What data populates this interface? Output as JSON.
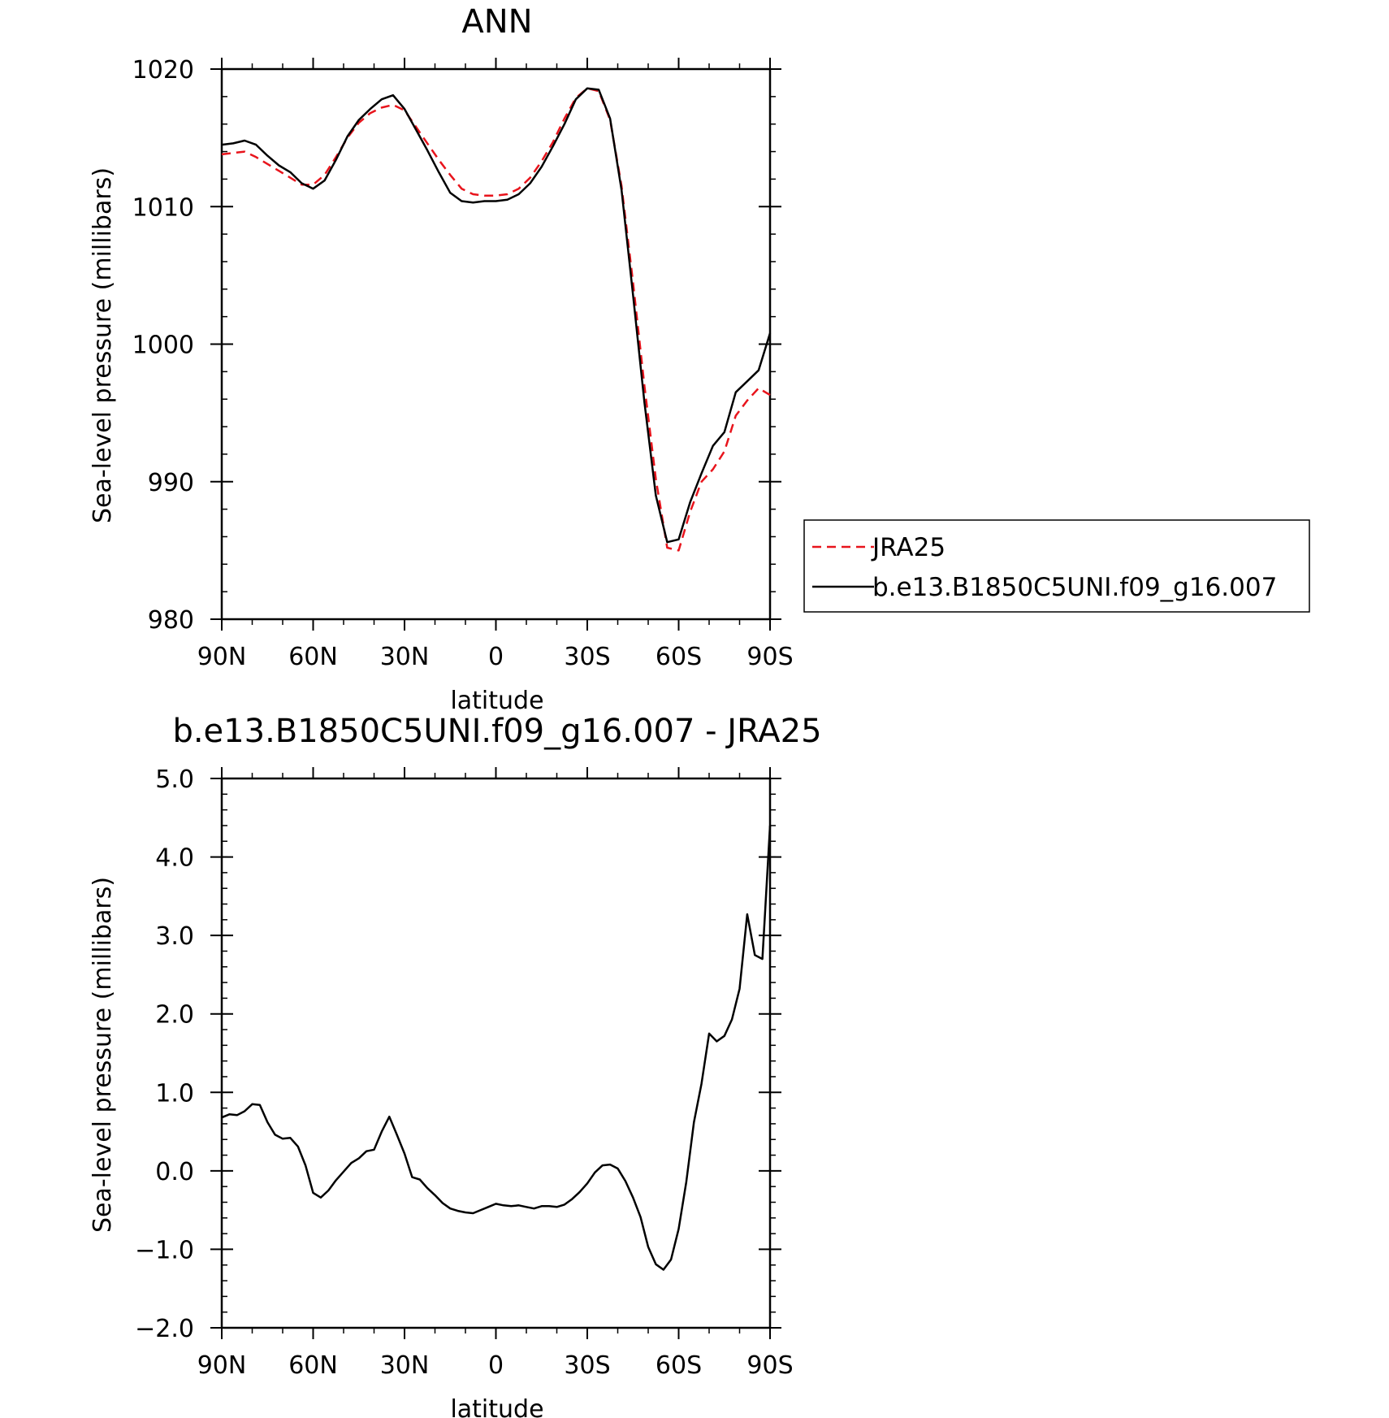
{
  "chart_data": [
    {
      "type": "line",
      "title": "ANN",
      "xlabel": "latitude",
      "ylabel": "Sea-level pressure (millibars)",
      "x_ticks": [
        {
          "value": 90,
          "label": "90N"
        },
        {
          "value": 60,
          "label": "60N"
        },
        {
          "value": 30,
          "label": "30N"
        },
        {
          "value": 0,
          "label": "0"
        },
        {
          "value": -30,
          "label": "30S"
        },
        {
          "value": -60,
          "label": "60S"
        },
        {
          "value": -90,
          "label": "90S"
        }
      ],
      "xlim": [
        90,
        -90
      ],
      "ylim": [
        980,
        1020
      ],
      "y_ticks": [
        {
          "value": 980,
          "label": "980"
        },
        {
          "value": 990,
          "label": "990"
        },
        {
          "value": 1000,
          "label": "1000"
        },
        {
          "value": 1010,
          "label": "1010"
        },
        {
          "value": 1020,
          "label": "1020"
        }
      ],
      "y_minor_step": 2,
      "x_minor_step": 10,
      "grid": false,
      "legend": {
        "placement": "right",
        "entries": [
          "JRA25",
          "b.e13.B1850C5UNI.f09_g16.007"
        ]
      },
      "x": [
        90,
        86.25,
        82.5,
        78.75,
        75,
        71.25,
        67.5,
        63.75,
        60,
        56.25,
        52.5,
        48.75,
        45,
        41.25,
        37.5,
        33.75,
        30,
        26.25,
        22.5,
        18.75,
        15,
        11.25,
        7.5,
        3.75,
        0,
        -3.75,
        -7.5,
        -11.25,
        -15,
        -18.75,
        -22.5,
        -26.25,
        -30,
        -33.75,
        -37.5,
        -41.25,
        -45,
        -48.75,
        -52.5,
        -56.25,
        -60,
        -63.75,
        -67.5,
        -71.25,
        -75,
        -78.75,
        -82.5,
        -86.25,
        -90
      ],
      "series": [
        {
          "name": "JRA25",
          "color": "#e8141c",
          "style": "dashed",
          "values": [
            1013.8,
            1013.9,
            1014.0,
            1013.6,
            1013.1,
            1012.6,
            1012.1,
            1011.6,
            1011.6,
            1012.3,
            1013.6,
            1015.0,
            1016.1,
            1016.8,
            1017.2,
            1017.4,
            1017.0,
            1015.8,
            1014.6,
            1013.4,
            1012.3,
            1011.3,
            1010.9,
            1010.8,
            1010.8,
            1010.9,
            1011.3,
            1012.1,
            1013.3,
            1014.7,
            1016.4,
            1017.9,
            1018.6,
            1018.4,
            1016.3,
            1011.5,
            1004.5,
            997.0,
            990.2,
            985.2,
            985.0,
            987.8,
            990.0,
            990.9,
            992.2,
            994.8,
            995.9,
            996.8,
            996.3
          ]
        },
        {
          "name": "b.e13.B1850C5UNI.f09_g16.007",
          "color": "#000000",
          "style": "solid",
          "values": [
            1014.5,
            1014.6,
            1014.8,
            1014.5,
            1013.7,
            1013.0,
            1012.5,
            1011.7,
            1011.3,
            1011.9,
            1013.4,
            1015.1,
            1016.3,
            1017.1,
            1017.8,
            1018.1,
            1017.1,
            1015.6,
            1014.1,
            1012.5,
            1011.0,
            1010.4,
            1010.3,
            1010.4,
            1010.4,
            1010.5,
            1010.9,
            1011.7,
            1012.9,
            1014.4,
            1016.0,
            1017.8,
            1018.6,
            1018.5,
            1016.4,
            1011.2,
            1003.6,
            995.8,
            989.0,
            985.6,
            985.8,
            988.5,
            990.6,
            992.6,
            993.6,
            996.5,
            997.3,
            998.1,
            1000.8
          ]
        }
      ]
    },
    {
      "type": "line",
      "title": "b.e13.B1850C5UNI.f09_g16.007 - JRA25",
      "xlabel": "latitude",
      "ylabel": "Sea-level pressure (millibars)",
      "x_ticks": [
        {
          "value": 90,
          "label": "90N"
        },
        {
          "value": 60,
          "label": "60N"
        },
        {
          "value": 30,
          "label": "30N"
        },
        {
          "value": 0,
          "label": "0"
        },
        {
          "value": -30,
          "label": "30S"
        },
        {
          "value": -60,
          "label": "60S"
        },
        {
          "value": -90,
          "label": "90S"
        }
      ],
      "xlim": [
        90,
        -90
      ],
      "ylim": [
        -2.0,
        5.0
      ],
      "y_ticks": [
        {
          "value": -2.0,
          "label": "−2.0"
        },
        {
          "value": -1.0,
          "label": "−1.0"
        },
        {
          "value": 0.0,
          "label": "0.0"
        },
        {
          "value": 1.0,
          "label": "1.0"
        },
        {
          "value": 2.0,
          "label": "2.0"
        },
        {
          "value": 3.0,
          "label": "3.0"
        },
        {
          "value": 4.0,
          "label": "4.0"
        },
        {
          "value": 5.0,
          "label": "5.0"
        }
      ],
      "y_minor_step": 0.2,
      "x_minor_step": 10,
      "grid": false,
      "series": [
        {
          "color": "#000000",
          "style": "solid",
          "x": [
            90,
            87.5,
            85,
            82.5,
            80,
            77.5,
            75,
            72.5,
            70,
            67.5,
            65,
            62.5,
            60,
            57.5,
            55,
            52.5,
            50,
            47.5,
            45,
            42.5,
            40,
            37.5,
            35,
            32.5,
            30,
            27.5,
            25,
            22.5,
            20,
            17.5,
            15,
            12.5,
            10,
            7.5,
            5,
            2.5,
            0,
            -2.5,
            -5,
            -7.5,
            -10,
            -12.5,
            -15,
            -17.5,
            -20,
            -22.5,
            -25,
            -27.5,
            -30,
            -32.5,
            -35,
            -37.5,
            -40,
            -42.5,
            -45,
            -47.5,
            -50,
            -52.5,
            -55,
            -57.5,
            -60,
            -62.5,
            -65,
            -67.5,
            -70,
            -72.5,
            -75,
            -77.5,
            -80,
            -82.5,
            -85,
            -87.5,
            -90
          ],
          "values": [
            0.68,
            0.72,
            0.71,
            0.76,
            0.85,
            0.84,
            0.62,
            0.46,
            0.41,
            0.42,
            0.31,
            0.07,
            -0.28,
            -0.34,
            -0.25,
            -0.12,
            -0.01,
            0.1,
            0.16,
            0.25,
            0.27,
            0.5,
            0.69,
            0.46,
            0.22,
            -0.08,
            -0.11,
            -0.22,
            -0.31,
            -0.41,
            -0.48,
            -0.51,
            -0.53,
            -0.54,
            -0.5,
            -0.46,
            -0.42,
            -0.44,
            -0.45,
            -0.44,
            -0.46,
            -0.48,
            -0.45,
            -0.45,
            -0.46,
            -0.43,
            -0.36,
            -0.27,
            -0.16,
            -0.02,
            0.07,
            0.08,
            0.03,
            -0.13,
            -0.34,
            -0.59,
            -0.97,
            -1.19,
            -1.26,
            -1.13,
            -0.74,
            -0.14,
            0.62,
            1.11,
            1.75,
            1.65,
            1.72,
            1.93,
            2.32,
            3.27,
            2.75,
            2.7,
            4.4
          ]
        }
      ]
    }
  ]
}
